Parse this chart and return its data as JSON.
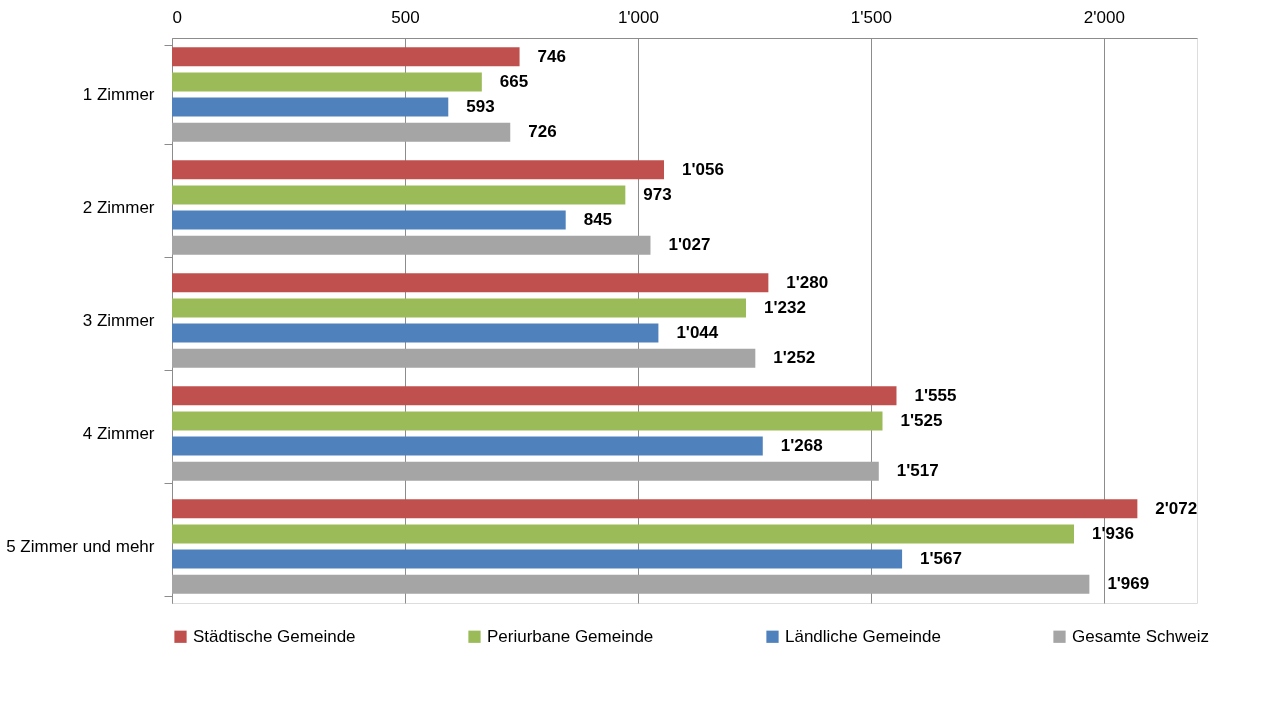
{
  "chart_data": {
    "type": "bar",
    "orientation": "horizontal",
    "categories": [
      "1 Zimmer",
      "2 Zimmer",
      "3 Zimmer",
      "4 Zimmer",
      "5 Zimmer und mehr"
    ],
    "series": [
      {
        "name": "Städtische Gemeinde",
        "color": "#c0504d",
        "values": [
          746,
          1056,
          1280,
          1555,
          2072
        ],
        "value_labels": [
          "746",
          "1'056",
          "1'280",
          "1'555",
          "2'072"
        ]
      },
      {
        "name": "Periurbane Gemeinde",
        "color": "#9bbb59",
        "values": [
          665,
          973,
          1232,
          1525,
          1936
        ],
        "value_labels": [
          "665",
          "973",
          "1'232",
          "1'525",
          "1'936"
        ]
      },
      {
        "name": "Ländliche Gemeinde",
        "color": "#4f81bd",
        "values": [
          593,
          845,
          1044,
          1268,
          1567
        ],
        "value_labels": [
          "593",
          "845",
          "1'044",
          "1'268",
          "1'567"
        ]
      },
      {
        "name": "Gesamte Schweiz",
        "color": "#a5a5a5",
        "values": [
          726,
          1027,
          1252,
          1517,
          1969
        ],
        "value_labels": [
          "726",
          "1'027",
          "1'252",
          "1'517",
          "1'969"
        ]
      }
    ],
    "xlim": [
      0,
      2200
    ],
    "xticks": [
      0,
      500,
      {
        "value": 1000,
        "label": "1'000"
      },
      {
        "value": 1500,
        "label": "1'500"
      },
      {
        "value": 2000,
        "label": "2'000"
      }
    ],
    "grid": "x",
    "legend": "bottom"
  }
}
